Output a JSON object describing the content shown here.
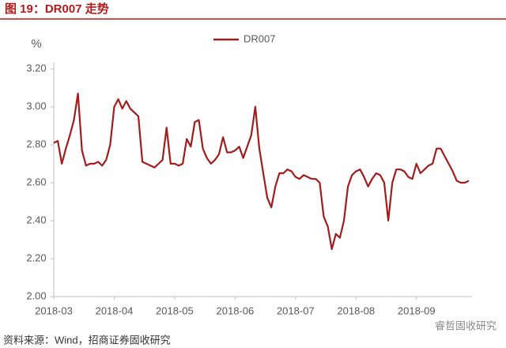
{
  "chart_data": {
    "type": "line",
    "title": "图 19：DR007 走势",
    "y_label": "%",
    "source": "资料来源：Wind，招商证券固收研究",
    "watermark": "睿哲固收研究",
    "categories": [
      "2018-03",
      null,
      null,
      null,
      null,
      null,
      null,
      null,
      null,
      null,
      null,
      null,
      null,
      null,
      null,
      "2018-04",
      null,
      null,
      null,
      null,
      null,
      null,
      null,
      null,
      null,
      null,
      null,
      null,
      null,
      null,
      "2018-05",
      null,
      null,
      null,
      null,
      null,
      null,
      null,
      null,
      null,
      null,
      null,
      null,
      null,
      null,
      "2018-06",
      null,
      null,
      null,
      null,
      null,
      null,
      null,
      null,
      null,
      null,
      null,
      null,
      null,
      null,
      "2018-07",
      null,
      null,
      null,
      null,
      null,
      null,
      null,
      null,
      null,
      null,
      null,
      null,
      null,
      null,
      "2018-08",
      null,
      null,
      null,
      null,
      null,
      null,
      null,
      null,
      null,
      null,
      null,
      null,
      null,
      null,
      "2018-09",
      null,
      null,
      null,
      null,
      null,
      null,
      null,
      null,
      null,
      null,
      null,
      null,
      null
    ],
    "series": [
      {
        "name": "DR007",
        "color": "#a31c1c",
        "values": [
          2.81,
          2.82,
          2.7,
          2.78,
          2.85,
          2.93,
          3.07,
          2.77,
          2.69,
          2.7,
          2.7,
          2.71,
          2.69,
          2.72,
          2.8,
          3.0,
          3.04,
          2.99,
          3.03,
          2.99,
          2.97,
          2.95,
          2.71,
          2.7,
          2.69,
          2.68,
          2.7,
          2.72,
          2.89,
          2.7,
          2.7,
          2.69,
          2.7,
          2.83,
          2.79,
          2.92,
          2.93,
          2.78,
          2.73,
          2.7,
          2.72,
          2.75,
          2.84,
          2.76,
          2.76,
          2.77,
          2.79,
          2.73,
          2.79,
          2.85,
          3.0,
          2.78,
          2.65,
          2.52,
          2.47,
          2.58,
          2.65,
          2.65,
          2.67,
          2.66,
          2.63,
          2.62,
          2.64,
          2.63,
          2.62,
          2.62,
          2.6,
          2.42,
          2.37,
          2.25,
          2.33,
          2.31,
          2.4,
          2.58,
          2.64,
          2.66,
          2.67,
          2.63,
          2.58,
          2.62,
          2.65,
          2.64,
          2.6,
          2.4,
          2.6,
          2.67,
          2.67,
          2.66,
          2.63,
          2.62,
          2.7,
          2.65,
          2.67,
          2.69,
          2.7,
          2.78,
          2.78,
          2.74,
          2.7,
          2.66,
          2.61,
          2.6,
          2.6,
          2.61
        ]
      }
    ],
    "ylim": [
      2.0,
      3.2
    ],
    "yticks": [
      {
        "value": 2.0,
        "label": "2.00"
      },
      {
        "value": 2.2,
        "label": "2.20"
      },
      {
        "value": 2.4,
        "label": "2.40"
      },
      {
        "value": 2.6,
        "label": "2.60"
      },
      {
        "value": 2.8,
        "label": "2.80"
      },
      {
        "value": 3.0,
        "label": "3.00"
      },
      {
        "value": 3.2,
        "label": "3.20"
      }
    ],
    "grid": false,
    "legend": "top"
  }
}
